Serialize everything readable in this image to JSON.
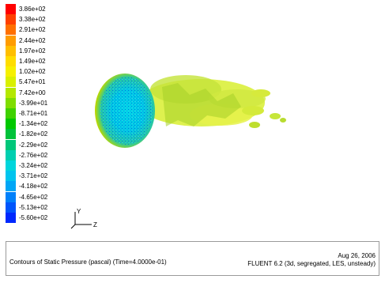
{
  "legend": {
    "colors": [
      "#ff0000",
      "#ff4000",
      "#ff7000",
      "#ff9c00",
      "#ffbf00",
      "#ffdd00",
      "#f6f000",
      "#d9f000",
      "#b4e800",
      "#7fdd00",
      "#3fd100",
      "#00c800",
      "#00c23a",
      "#00c77a",
      "#00cfb0",
      "#00d5dc",
      "#00c4ee",
      "#00a6f6",
      "#0080fa",
      "#0055fc",
      "#0028fe",
      "#0000ff"
    ],
    "labels": [
      "3.86e+02",
      "3.38e+02",
      "2.91e+02",
      "2.44e+02",
      "1.97e+02",
      "1.49e+02",
      "1.02e+02",
      "5.47e+01",
      "7.42e+00",
      "-3.99e+01",
      "-8.71e+01",
      "-1.34e+02",
      "-1.82e+02",
      "-2.29e+02",
      "-2.76e+02",
      "-3.24e+02",
      "-3.71e+02",
      "-4.18e+02",
      "-4.65e+02",
      "-5.13e+02",
      "-5.60e+02"
    ]
  },
  "axes": {
    "y_label": "Y",
    "z_label": "Z"
  },
  "caption": {
    "title": "Contours of Static Pressure (pascal)  (Time=4.0000e-01)",
    "date": "Aug 26, 2006",
    "solver": "FLUENT 6.2 (3d, segregated, LES, unsteady)"
  }
}
